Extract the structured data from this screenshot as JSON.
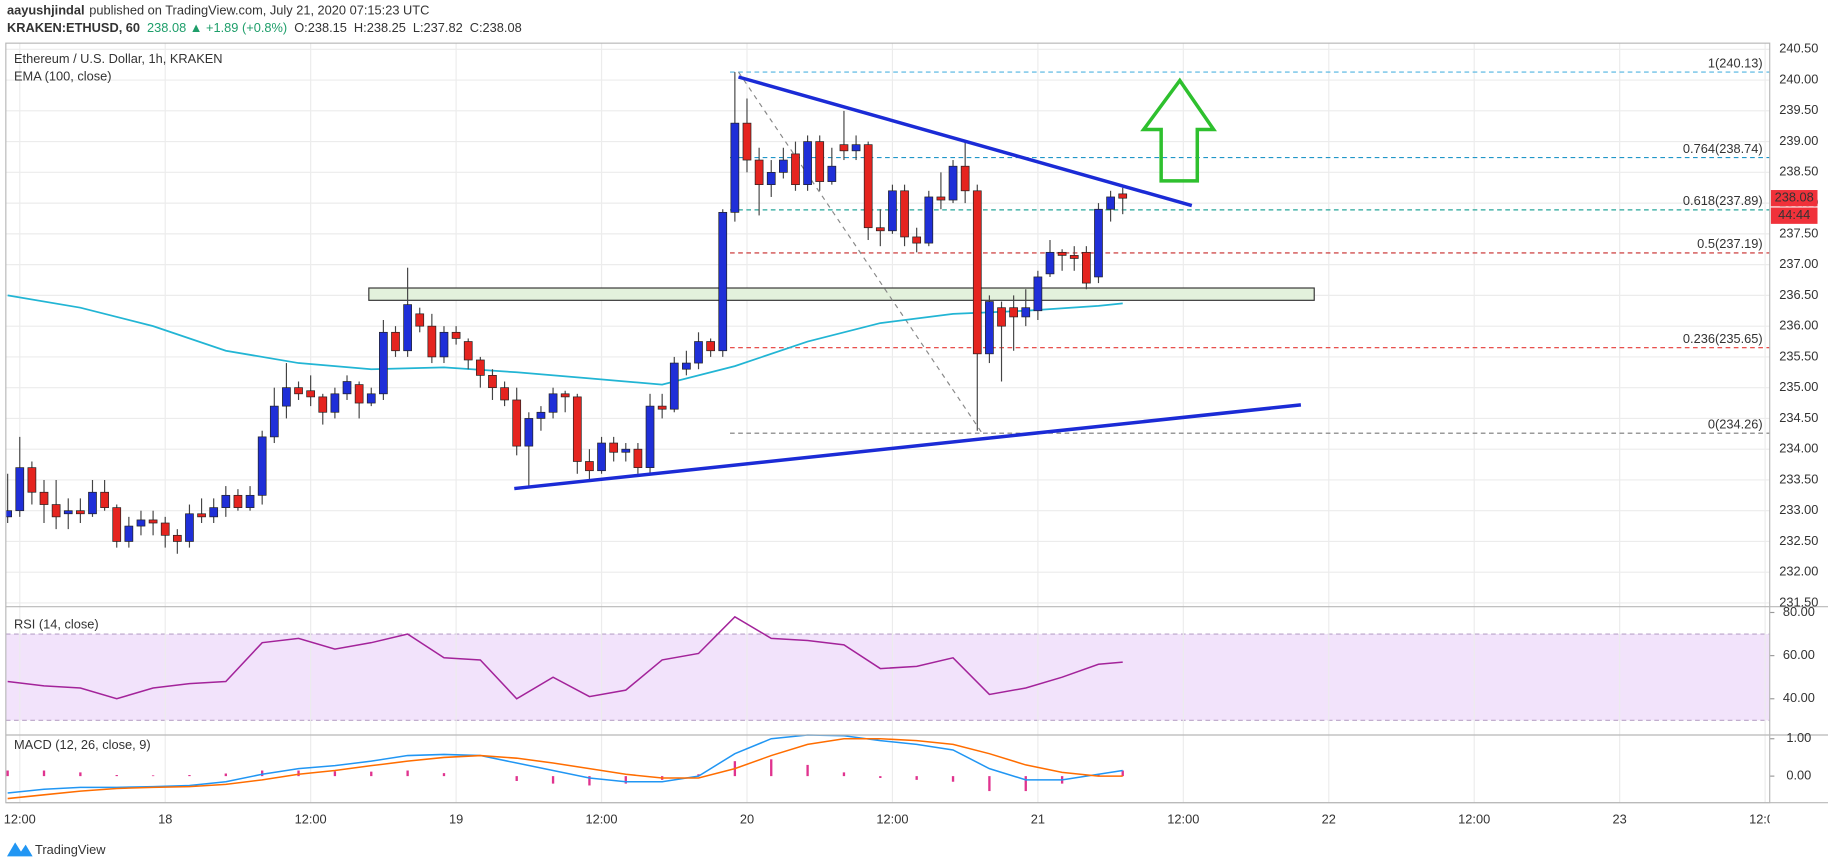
{
  "header": {
    "author": "aayushjindal",
    "published": "published on TradingView.com, July 21, 2020 07:15:23 UTC",
    "symbol": "KRAKEN:ETHUSD, 60",
    "change": "238.08 ▲ +1.89 (+0.8%)",
    "open": "O:238.15",
    "high": "H:238.25",
    "low": "L:237.82",
    "close": "C:238.08",
    "logo": "TradingView"
  },
  "chart_data": [
    {
      "type": "candlestick",
      "title": "Ethereum / U.S. Dollar, 1h, KRAKEN",
      "up_color": "#1f2fd8",
      "down_color": "#e5241f",
      "x": [
        -1,
        0,
        1,
        2,
        3,
        4,
        5,
        6,
        7,
        8,
        9,
        10,
        11,
        12,
        13,
        14,
        15,
        16,
        17,
        18,
        19,
        20,
        21,
        22,
        23,
        24,
        25,
        26,
        27,
        28,
        29,
        30,
        31,
        32,
        33,
        34,
        35,
        36,
        37,
        38,
        39,
        40,
        41,
        42,
        43,
        44,
        45,
        46,
        47,
        48,
        49,
        50,
        51,
        52,
        53,
        54,
        55,
        56,
        57,
        58,
        59,
        60,
        61,
        62,
        63,
        64,
        65,
        66,
        67,
        68,
        69,
        70,
        71,
        72,
        73,
        74,
        75,
        76,
        77,
        78,
        79,
        80,
        81,
        82,
        83,
        84,
        85,
        86,
        87,
        88,
        89,
        90,
        91
      ],
      "open": [
        232.9,
        233.0,
        233.7,
        233.3,
        233.1,
        232.95,
        233.0,
        232.95,
        233.3,
        233.05,
        232.5,
        232.75,
        232.85,
        232.8,
        232.6,
        232.5,
        232.95,
        232.9,
        233.05,
        233.25,
        233.05,
        233.25,
        234.2,
        234.7,
        235.0,
        234.95,
        234.85,
        234.6,
        234.9,
        235.05,
        234.75,
        234.9,
        235.9,
        235.6,
        236.2,
        236.0,
        235.5,
        235.9,
        235.75,
        235.45,
        235.2,
        235.0,
        234.8,
        234.05,
        234.5,
        234.6,
        234.9,
        234.85,
        233.8,
        233.65,
        234.1,
        233.95,
        234.0,
        233.7,
        234.7,
        234.65,
        235.3,
        235.4,
        235.75,
        235.6,
        237.85,
        239.3,
        238.7,
        238.3,
        238.5,
        238.8,
        238.3,
        239.0,
        238.35,
        238.95,
        238.85,
        238.95,
        237.6,
        237.55,
        238.2,
        237.45,
        237.35,
        238.1,
        238.05,
        238.6,
        238.2,
        235.55,
        236.3,
        236.3,
        236.15,
        236.25,
        236.85,
        237.2,
        237.15,
        237.2,
        236.8,
        237.9,
        238.15
      ],
      "high": [
        233.6,
        234.2,
        233.8,
        233.5,
        233.5,
        233.2,
        233.2,
        233.5,
        233.5,
        233.1,
        232.9,
        233.0,
        233.0,
        232.9,
        232.7,
        233.1,
        233.2,
        233.2,
        233.4,
        233.35,
        233.4,
        234.3,
        235.0,
        235.4,
        235.1,
        235.2,
        234.9,
        235.0,
        235.2,
        235.1,
        235.0,
        236.1,
        236.0,
        236.95,
        236.3,
        236.2,
        236.0,
        236.0,
        235.8,
        235.5,
        235.3,
        235.1,
        235.0,
        234.6,
        234.7,
        235.0,
        234.95,
        234.9,
        234.0,
        234.2,
        234.2,
        234.1,
        234.1,
        234.9,
        234.9,
        235.5,
        235.6,
        235.9,
        235.8,
        237.9,
        240.13,
        239.7,
        238.9,
        238.7,
        238.9,
        239.0,
        239.1,
        239.1,
        238.9,
        239.5,
        239.1,
        239.0,
        237.9,
        238.3,
        238.3,
        237.6,
        238.2,
        238.5,
        238.7,
        239.0,
        238.3,
        236.5,
        236.4,
        236.5,
        236.6,
        236.9,
        237.4,
        237.25,
        237.3,
        237.3,
        238.0,
        238.2,
        238.25
      ],
      "low": [
        232.8,
        232.9,
        233.1,
        232.8,
        232.7,
        232.7,
        232.8,
        232.9,
        233.0,
        232.4,
        232.4,
        232.6,
        232.6,
        232.4,
        232.3,
        232.4,
        232.8,
        232.8,
        232.9,
        233.0,
        233.0,
        233.1,
        234.1,
        234.5,
        234.8,
        234.7,
        234.4,
        234.5,
        234.8,
        234.5,
        234.7,
        234.8,
        235.5,
        235.5,
        235.9,
        235.4,
        235.4,
        235.7,
        235.3,
        235.0,
        234.8,
        234.7,
        233.9,
        233.4,
        234.3,
        234.5,
        234.6,
        233.6,
        233.5,
        233.6,
        233.8,
        233.8,
        233.6,
        233.6,
        234.5,
        234.6,
        235.2,
        235.3,
        235.5,
        235.5,
        237.7,
        238.5,
        237.8,
        238.1,
        238.4,
        238.2,
        238.2,
        238.2,
        238.3,
        238.7,
        238.7,
        237.4,
        237.3,
        237.5,
        237.3,
        237.2,
        237.3,
        237.9,
        238.0,
        238.0,
        234.3,
        235.4,
        235.1,
        235.6,
        236.0,
        236.1,
        236.8,
        236.9,
        236.9,
        236.6,
        236.7,
        237.7,
        237.82
      ],
      "close": [
        233.0,
        233.7,
        233.3,
        233.1,
        232.9,
        233.0,
        232.95,
        233.3,
        233.05,
        232.5,
        232.75,
        232.85,
        232.8,
        232.6,
        232.5,
        232.95,
        232.9,
        233.05,
        233.25,
        233.05,
        233.25,
        234.2,
        234.7,
        235.0,
        234.9,
        234.85,
        234.6,
        234.9,
        235.1,
        234.75,
        234.9,
        235.9,
        235.6,
        236.35,
        236.0,
        235.5,
        235.9,
        235.8,
        235.45,
        235.2,
        235.0,
        234.8,
        234.05,
        234.5,
        234.6,
        234.9,
        234.85,
        233.8,
        233.65,
        234.1,
        233.95,
        234.0,
        233.7,
        234.7,
        234.65,
        235.4,
        235.4,
        235.75,
        235.6,
        237.85,
        239.3,
        238.7,
        238.3,
        238.5,
        238.7,
        238.3,
        239.0,
        238.35,
        238.6,
        238.85,
        238.95,
        237.6,
        237.55,
        238.2,
        237.45,
        237.35,
        238.1,
        238.05,
        238.6,
        238.2,
        235.55,
        236.4,
        236.0,
        236.15,
        236.3,
        236.8,
        237.2,
        237.15,
        237.1,
        236.7,
        237.9,
        238.1,
        238.08
      ],
      "ema": {
        "name": "EMA (100, close)",
        "color": "#22b5d4",
        "x": [
          -1,
          5,
          11,
          17,
          23,
          29,
          35,
          41,
          47,
          53,
          59,
          65,
          71,
          77,
          83,
          89,
          91
        ],
        "values": [
          236.5,
          236.3,
          236.0,
          235.6,
          235.4,
          235.3,
          235.33,
          235.25,
          235.15,
          235.05,
          235.35,
          235.75,
          236.05,
          236.2,
          236.25,
          236.33,
          236.37
        ]
      },
      "xlim": [
        -1.15,
        144.38
      ],
      "xticks": [
        {
          "value": 0,
          "label": "12:00"
        },
        {
          "value": 12,
          "label": "18"
        },
        {
          "value": 24,
          "label": "12:00"
        },
        {
          "value": 36,
          "label": "19"
        },
        {
          "value": 48,
          "label": "12:00"
        },
        {
          "value": 60,
          "label": "20"
        },
        {
          "value": 72,
          "label": "12:00"
        },
        {
          "value": 84,
          "label": "21"
        },
        {
          "value": 96,
          "label": "12:00"
        },
        {
          "value": 108,
          "label": "22"
        },
        {
          "value": 120,
          "label": "12:00"
        },
        {
          "value": 132,
          "label": "23"
        },
        {
          "value": 144,
          "label": "12:00"
        }
      ],
      "ylim": [
        231.44,
        240.6
      ],
      "yticks": [
        {
          "value": 231.5,
          "label": "231.50"
        },
        {
          "value": 232,
          "label": "232.00"
        },
        {
          "value": 232.5,
          "label": "232.50"
        },
        {
          "value": 233,
          "label": "233.00"
        },
        {
          "value": 233.5,
          "label": "233.50"
        },
        {
          "value": 234,
          "label": "234.00"
        },
        {
          "value": 234.5,
          "label": "234.50"
        },
        {
          "value": 235,
          "label": "235.00"
        },
        {
          "value": 235.5,
          "label": "235.50"
        },
        {
          "value": 236,
          "label": "236.00"
        },
        {
          "value": 236.5,
          "label": "236.50"
        },
        {
          "value": 237,
          "label": "237.00"
        },
        {
          "value": 237.5,
          "label": "237.50"
        },
        {
          "value": 238,
          "label": "238.00"
        },
        {
          "value": 238.5,
          "label": "238.50"
        },
        {
          "value": 239,
          "label": "239.00"
        },
        {
          "value": 239.5,
          "label": "239.50"
        },
        {
          "value": 240,
          "label": "240.00"
        },
        {
          "value": 240.5,
          "label": "240.50"
        }
      ],
      "grid": true,
      "fib": {
        "from_x": 58.6,
        "anchor_x": [
          59.3,
          79.4
        ],
        "levels": [
          {
            "label": "1(240.13)",
            "price": 240.13,
            "color": "#4fb3e0"
          },
          {
            "label": "0.764(238.74)",
            "price": 238.74,
            "color": "#2196c8"
          },
          {
            "label": "0.618(237.89)",
            "price": 237.89,
            "color": "#26a69a"
          },
          {
            "label": "0.5(237.19)",
            "price": 237.19,
            "color": "#c62828"
          },
          {
            "label": "0.236(235.65)",
            "price": 235.65,
            "color": "#e53935"
          },
          {
            "label": "0(234.26)",
            "price": 234.26,
            "color": "#787878"
          }
        ]
      },
      "trendlines": {
        "color": "#1b2bd6",
        "lines": [
          {
            "x": [
              40.8,
              105.7
            ],
            "y": [
              233.36,
              234.72
            ]
          },
          {
            "x": [
              59.3,
              96.7
            ],
            "y": [
              240.05,
              237.96
            ]
          }
        ]
      },
      "zone": {
        "color": "#e3f1dc",
        "x": [
          28.8,
          106.8
        ],
        "y": [
          236.42,
          236.62
        ]
      },
      "last_price": 238.08,
      "countdown": "44:44",
      "last_color": "#f0313a"
    },
    {
      "type": "line",
      "title": "RSI (14, close)",
      "x": [
        -1,
        2,
        5,
        8,
        11,
        14,
        17,
        20,
        23,
        26,
        29,
        32,
        35,
        38,
        41,
        44,
        47,
        50,
        53,
        56,
        59,
        62,
        65,
        68,
        71,
        74,
        77,
        80,
        83,
        86,
        89,
        91
      ],
      "series": [
        {
          "color": "#a3239a",
          "values": [
            48,
            46,
            45,
            40,
            45,
            47,
            48,
            66,
            68,
            63,
            66,
            70,
            59,
            58,
            40,
            50,
            41,
            44,
            58,
            61,
            78,
            68,
            67,
            65,
            54,
            55,
            59,
            42,
            45,
            50,
            56,
            57
          ]
        }
      ],
      "band": [
        30,
        70
      ],
      "band_color": "#f2e3fb",
      "ylim": [
        23.2,
        82.7
      ],
      "yticks": [
        {
          "value": 40,
          "label": "40.00"
        },
        {
          "value": 60,
          "label": "60.00"
        },
        {
          "value": 80,
          "label": "80.00"
        }
      ]
    },
    {
      "type": "macd",
      "title": "MACD (12, 26, close, 9)",
      "x": [
        -1,
        2,
        5,
        8,
        11,
        14,
        17,
        20,
        23,
        26,
        29,
        32,
        35,
        38,
        41,
        44,
        47,
        50,
        53,
        56,
        59,
        62,
        65,
        68,
        71,
        74,
        77,
        80,
        83,
        86,
        89,
        91
      ],
      "series": [
        {
          "color": "#2196f3",
          "values": [
            -0.45,
            -0.35,
            -0.3,
            -0.3,
            -0.28,
            -0.25,
            -0.15,
            0.05,
            0.2,
            0.28,
            0.4,
            0.55,
            0.58,
            0.55,
            0.35,
            0.15,
            -0.05,
            -0.15,
            -0.15,
            0.0,
            0.6,
            1.0,
            1.1,
            1.08,
            0.95,
            0.85,
            0.7,
            0.2,
            -0.1,
            -0.1,
            0.05,
            0.15
          ]
        },
        {
          "color": "#ff6d00",
          "values": [
            -0.6,
            -0.5,
            -0.4,
            -0.33,
            -0.3,
            -0.28,
            -0.22,
            -0.1,
            0.05,
            0.15,
            0.28,
            0.4,
            0.5,
            0.55,
            0.48,
            0.35,
            0.2,
            0.05,
            -0.05,
            -0.05,
            0.2,
            0.55,
            0.85,
            1.0,
            1.0,
            0.95,
            0.85,
            0.6,
            0.3,
            0.1,
            0.0,
            0.0
          ]
        }
      ],
      "histogram": {
        "color": "#e0338f",
        "values": [
          0.15,
          0.15,
          0.1,
          0.03,
          0.02,
          0.03,
          0.07,
          0.15,
          0.15,
          0.13,
          0.12,
          0.15,
          0.08,
          0,
          -0.13,
          -0.2,
          -0.25,
          -0.2,
          -0.1,
          0.05,
          0.4,
          0.45,
          0.3,
          0.1,
          -0.05,
          -0.1,
          -0.15,
          -0.4,
          -0.4,
          -0.2,
          0.05,
          0.15
        ]
      },
      "ylim": [
        -0.71,
        1.1
      ],
      "yticks": [
        {
          "value": 0,
          "label": "0.00"
        },
        {
          "value": 1,
          "label": "1.00"
        }
      ]
    }
  ]
}
